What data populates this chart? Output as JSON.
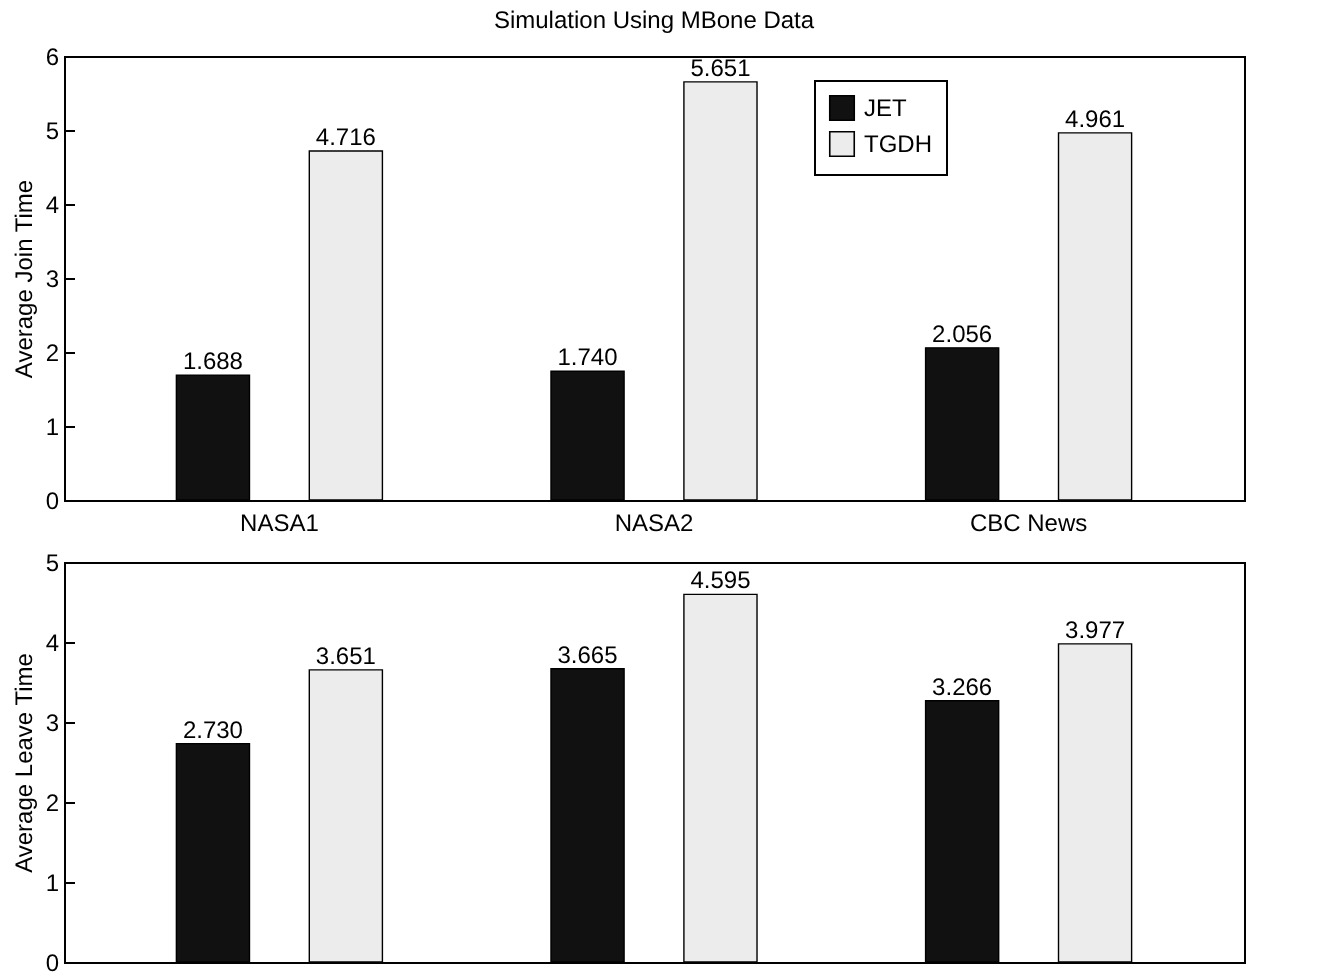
{
  "chart_data": [
    {
      "type": "bar",
      "title": "Simulation Using MBone Data",
      "ylabel": "Average Join Time",
      "categories": [
        "NASA1",
        "NASA2",
        "CBC News"
      ],
      "series": [
        {
          "name": "JET",
          "color": "#111111",
          "values": [
            1.688,
            1.74,
            2.056
          ],
          "value_labels": [
            "1.688",
            "1.740",
            "2.056"
          ]
        },
        {
          "name": "TGDH",
          "color": "#ececec",
          "values": [
            4.716,
            5.651,
            4.961
          ],
          "value_labels": [
            "4.716",
            "5.651",
            "4.961"
          ]
        }
      ],
      "ylim": [
        0,
        6
      ],
      "yticks": [
        0,
        1,
        2,
        3,
        4,
        5,
        6
      ],
      "legend": "top right"
    },
    {
      "type": "bar",
      "ylabel": "Average Leave Time",
      "categories": [
        null,
        null,
        null
      ],
      "series": [
        {
          "name": "JET",
          "color": "#111111",
          "values": [
            2.73,
            3.665,
            3.266
          ],
          "value_labels": [
            "2.730",
            "3.665",
            "3.266"
          ]
        },
        {
          "name": "TGDH",
          "color": "#ececec",
          "values": [
            3.651,
            4.595,
            3.977
          ],
          "value_labels": [
            "3.651",
            "4.595",
            "3.977"
          ]
        }
      ],
      "ylim": [
        0,
        5
      ],
      "yticks": [
        0,
        1,
        2,
        3,
        4,
        5
      ],
      "tick_labels": "y"
    }
  ]
}
